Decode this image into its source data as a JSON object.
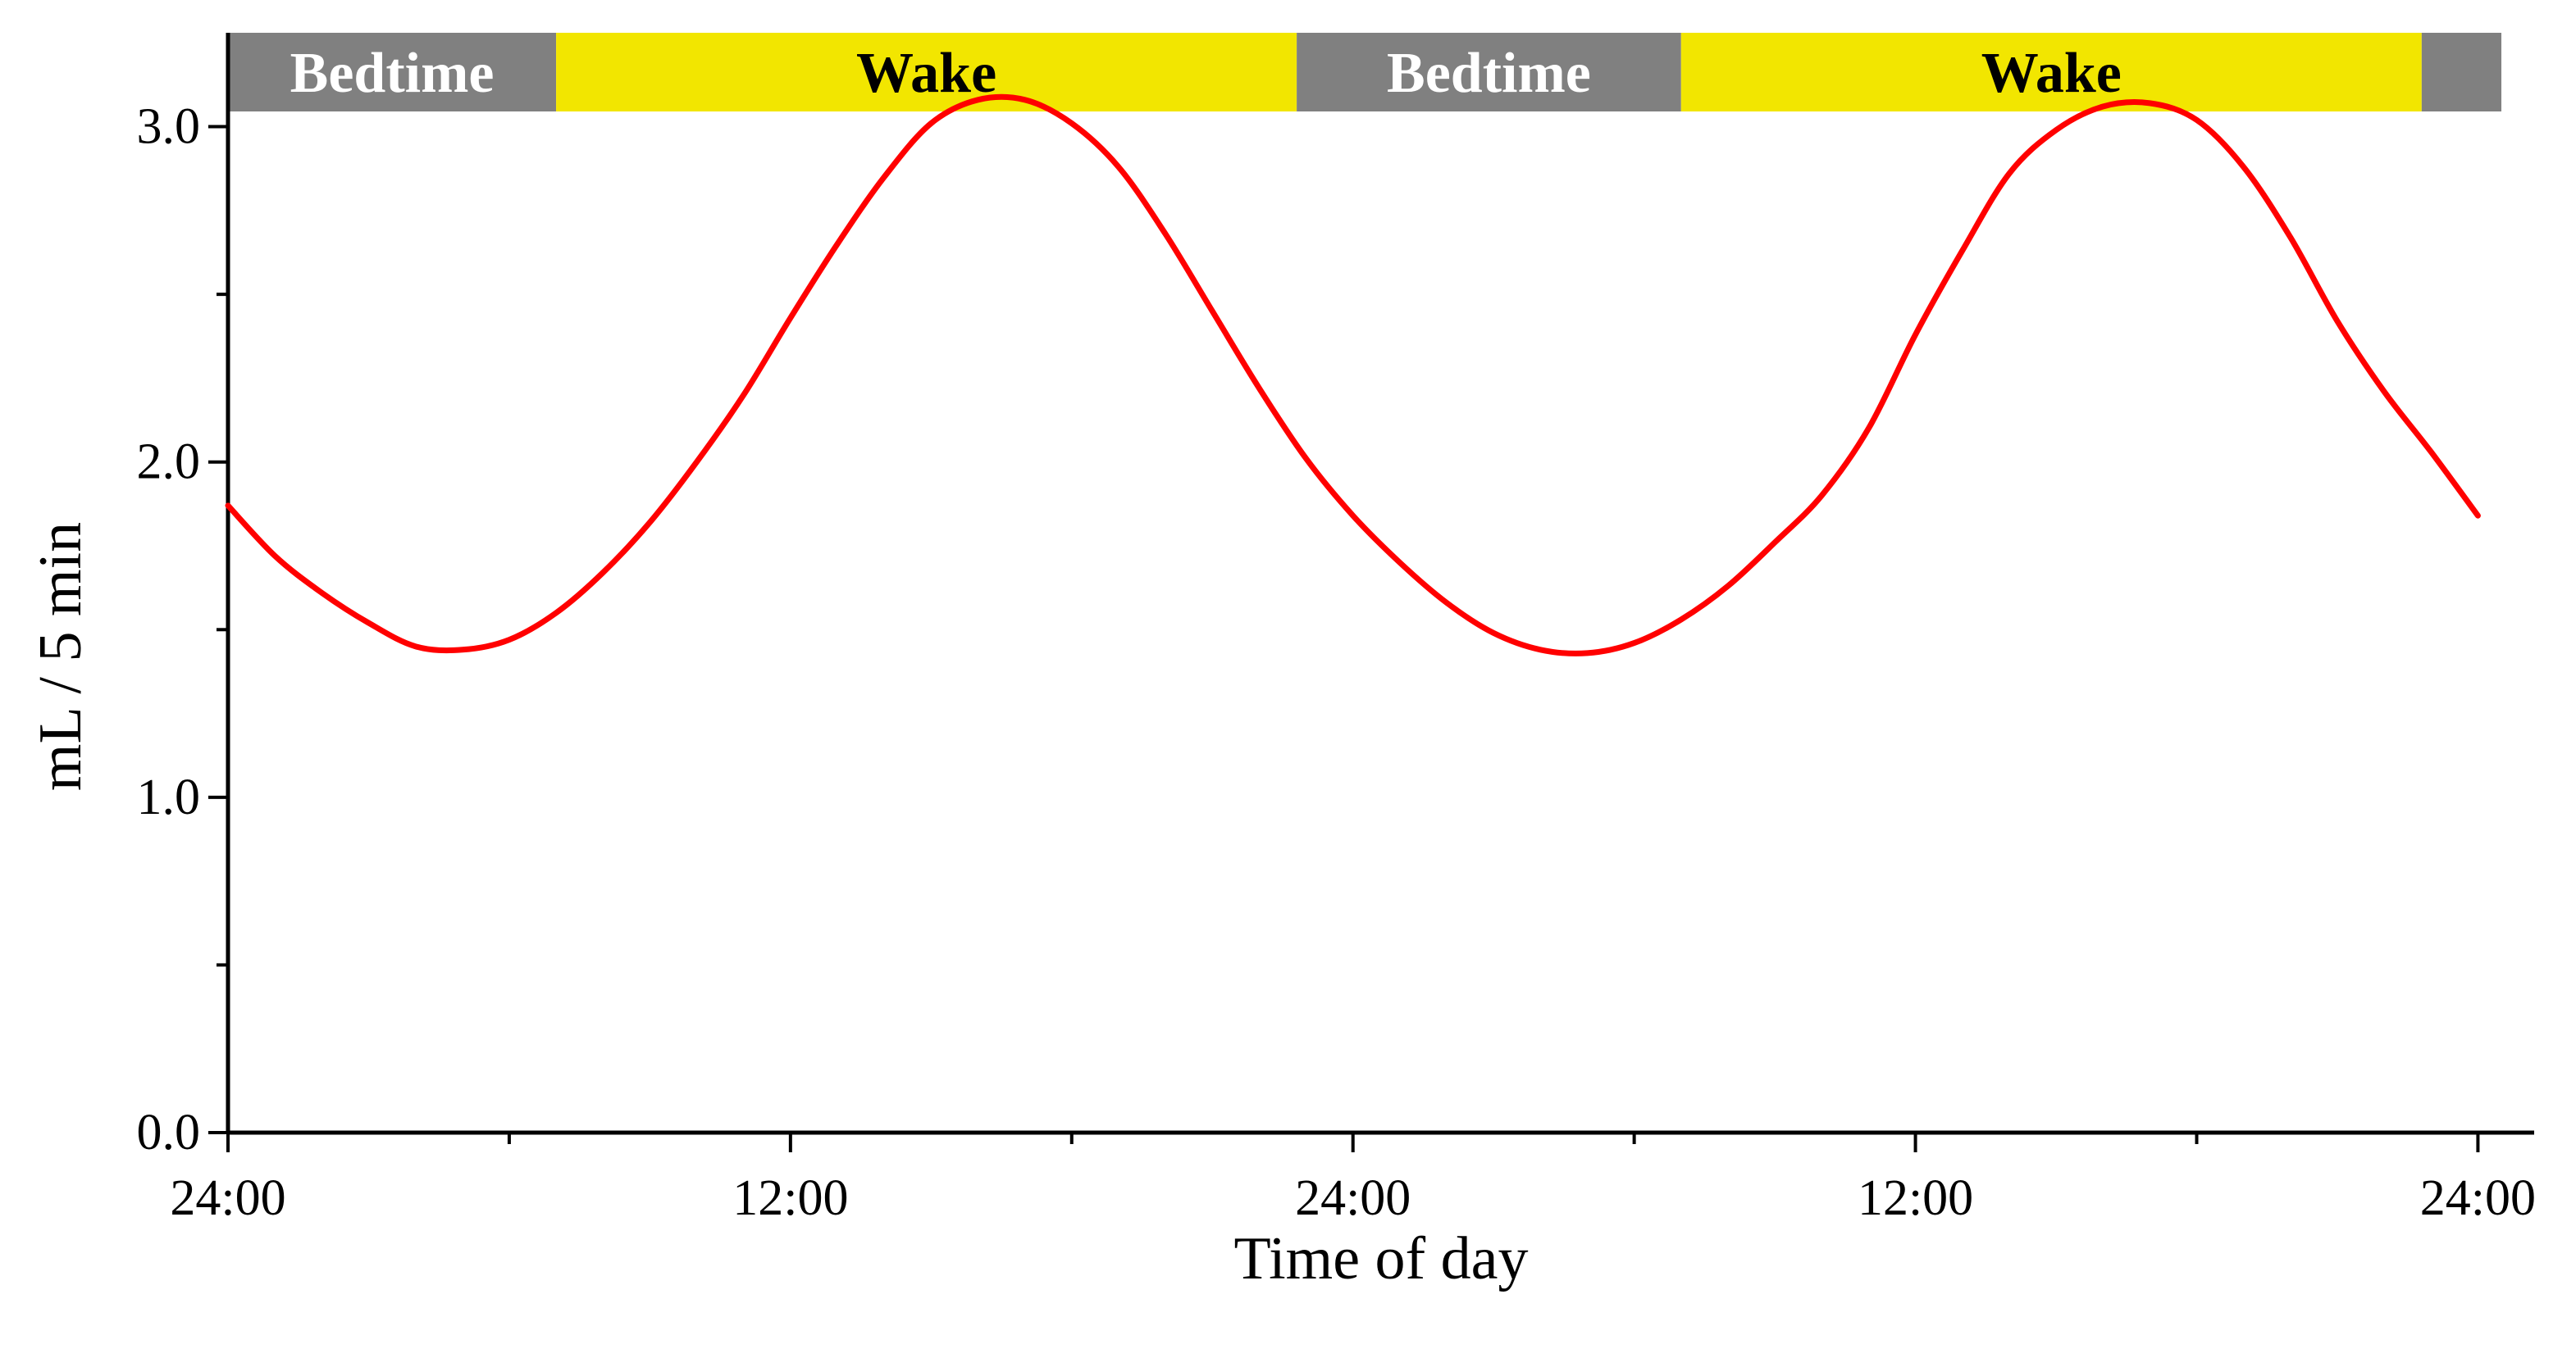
{
  "chart_data": {
    "type": "line",
    "title": "",
    "xlabel": "Time of day",
    "ylabel": "mL / 5 min",
    "x_tick_labels": [
      "24:00",
      "12:00",
      "24:00",
      "12:00",
      "24:00"
    ],
    "x_tick_hours": [
      0,
      12,
      24,
      36,
      48
    ],
    "x_minor_tick_hours": [
      6,
      18,
      30,
      42
    ],
    "xlim_hours": [
      0,
      49.2
    ],
    "y_tick_labels": [
      "0.0",
      "1.0",
      "2.0",
      "3.0"
    ],
    "y_tick_values": [
      0,
      1,
      2,
      3
    ],
    "y_minor_tick_values": [
      0.5,
      1.5,
      2.5
    ],
    "ylim": [
      0,
      3.28
    ],
    "grid": false,
    "series": [
      {
        "color": "#ff0000",
        "x_hours": [
          0,
          1,
          2,
          3,
          4,
          5,
          6,
          7,
          8,
          9,
          10,
          11,
          12,
          13,
          14,
          15,
          16,
          17,
          18,
          19,
          20,
          21,
          22,
          23,
          24,
          25,
          26,
          27,
          28,
          29,
          30,
          31,
          32,
          33,
          34,
          35,
          36,
          37,
          38,
          39,
          40,
          41,
          42,
          43,
          44,
          45,
          46,
          47,
          48
        ],
        "values": [
          1.87,
          1.72,
          1.61,
          1.52,
          1.45,
          1.44,
          1.47,
          1.55,
          1.67,
          1.82,
          2.0,
          2.2,
          2.43,
          2.65,
          2.85,
          3.01,
          3.08,
          3.08,
          3.01,
          2.88,
          2.68,
          2.45,
          2.22,
          2.01,
          1.84,
          1.7,
          1.58,
          1.49,
          1.44,
          1.43,
          1.46,
          1.53,
          1.63,
          1.76,
          1.9,
          2.1,
          2.38,
          2.63,
          2.86,
          2.99,
          3.06,
          3.07,
          3.02,
          2.88,
          2.67,
          2.42,
          2.21,
          2.03,
          1.84
        ]
      }
    ],
    "bands": [
      {
        "label": "Bedtime",
        "start_hour": 0,
        "end_hour": 7,
        "fill": "#808080",
        "text_color": "#ffffff"
      },
      {
        "label": "Wake",
        "start_hour": 7,
        "end_hour": 22.8,
        "fill": "#f2e600",
        "text_color": "#000000"
      },
      {
        "label": "Bedtime",
        "start_hour": 22.8,
        "end_hour": 31,
        "fill": "#808080",
        "text_color": "#ffffff"
      },
      {
        "label": "Wake",
        "start_hour": 31,
        "end_hour": 46.8,
        "fill": "#f2e600",
        "text_color": "#000000"
      },
      {
        "label": "",
        "start_hour": 46.8,
        "end_hour": 48.5,
        "fill": "#808080",
        "text_color": "#ffffff"
      }
    ]
  }
}
